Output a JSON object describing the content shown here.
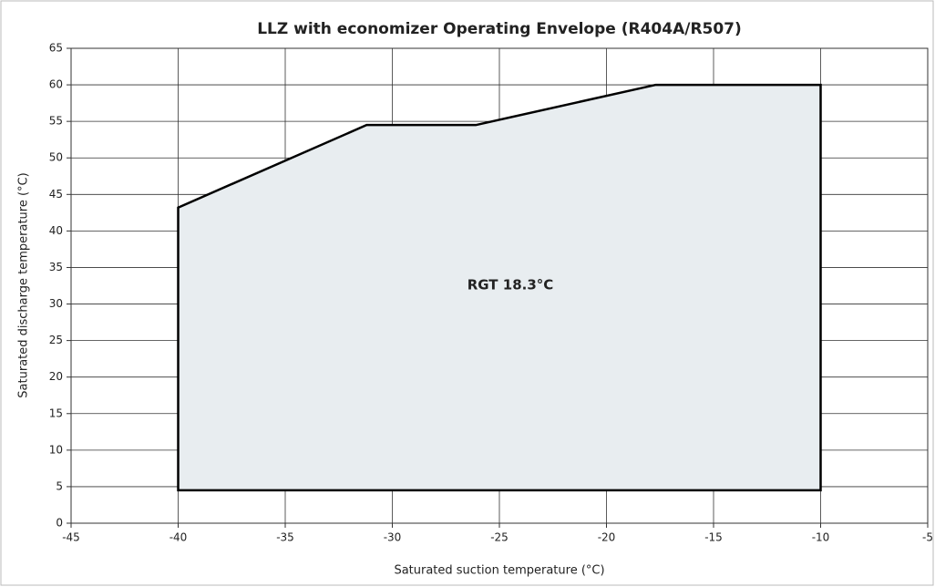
{
  "chart_data": {
    "type": "area",
    "title": "LLZ with economizer Operating Envelope (R404A/R507)",
    "x_label": "Saturated suction temperature (°C)",
    "y_label": "Saturated discharge temperature (°C)",
    "annotation": "RGT 18.3°C",
    "x": [
      -40,
      -31.2,
      -26.1,
      -17.7,
      -10,
      -10,
      -40,
      -40
    ],
    "values": [
      43.2,
      54.5,
      54.5,
      60,
      60,
      4.5,
      4.5,
      43.2
    ],
    "color": "#e8edf0",
    "line_color": "#000000",
    "xlim": [
      -45,
      -5
    ],
    "xticks": [
      -45,
      -40,
      -35,
      -30,
      -25,
      -20,
      -15,
      -10,
      -5
    ],
    "ylim": [
      0,
      65
    ],
    "yticks": [
      0,
      5,
      10,
      15,
      20,
      25,
      30,
      35,
      40,
      45,
      50,
      55,
      60,
      65
    ],
    "grid": true
  }
}
